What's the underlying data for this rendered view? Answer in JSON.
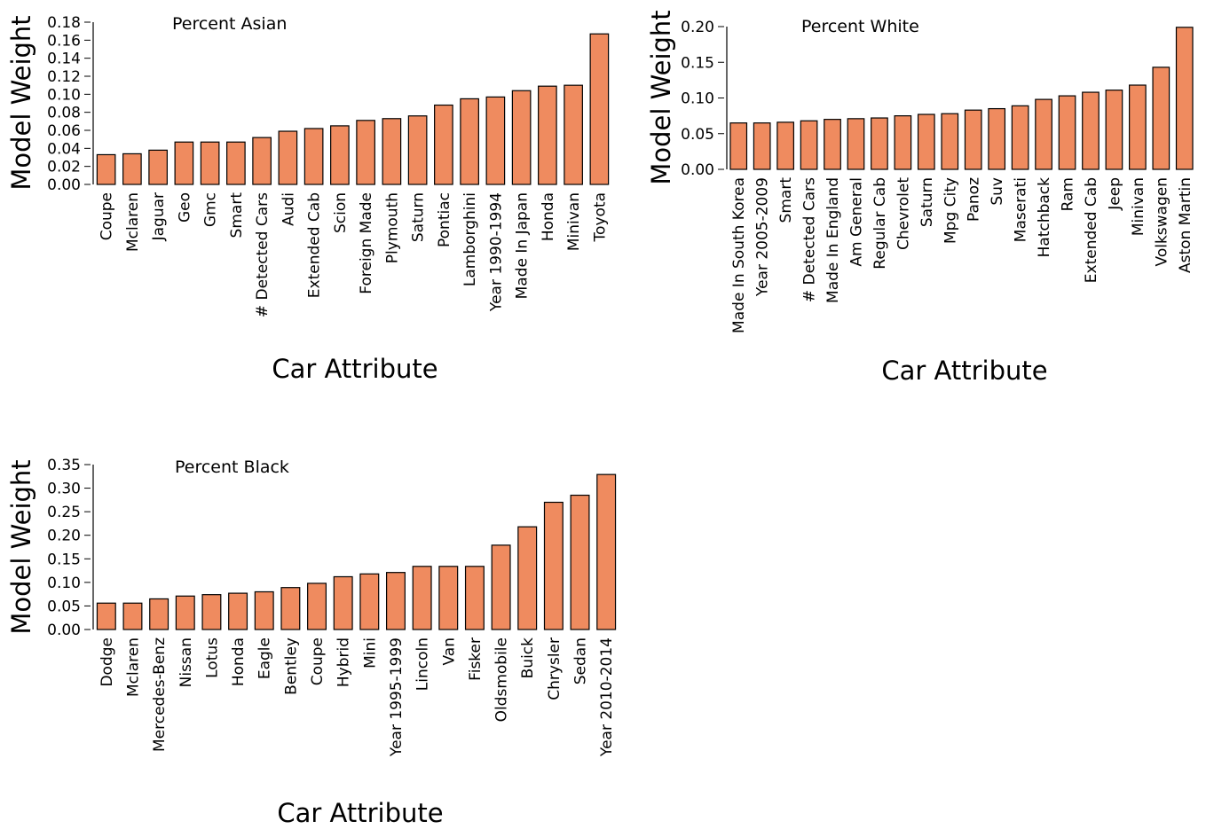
{
  "colors": {
    "bar_fill": "#ef8b5f",
    "bar_edge": "#000000",
    "background": "#ffffff"
  },
  "chart_data": [
    {
      "type": "bar",
      "title": "Percent Asian",
      "xlabel": "Car Attribute",
      "ylabel": "Model Weight",
      "ylim": [
        0,
        0.18
      ],
      "yticks": [
        "0.00",
        "0.02",
        "0.04",
        "0.06",
        "0.08",
        "0.10",
        "0.12",
        "0.14",
        "0.16",
        "0.18"
      ],
      "grid": false,
      "categories": [
        "Coupe",
        "Mclaren",
        "Jaguar",
        "Geo",
        "Gmc",
        "Smart",
        "# Detected Cars",
        "Audi",
        "Extended Cab",
        "Scion",
        "Foreign Made",
        "Plymouth",
        "Saturn",
        "Pontiac",
        "Lamborghini",
        "Year 1990-1994",
        "Made In Japan",
        "Honda",
        "Minivan",
        "Toyota"
      ],
      "values": [
        0.033,
        0.034,
        0.038,
        0.047,
        0.047,
        0.047,
        0.052,
        0.059,
        0.062,
        0.065,
        0.071,
        0.073,
        0.076,
        0.088,
        0.095,
        0.097,
        0.104,
        0.109,
        0.11,
        0.167
      ]
    },
    {
      "type": "bar",
      "title": "Percent White",
      "xlabel": "Car Attribute",
      "ylabel": "Model Weight",
      "ylim": [
        0,
        0.2
      ],
      "yticks": [
        "0.00",
        "0.05",
        "0.10",
        "0.15",
        "0.20"
      ],
      "grid": false,
      "categories": [
        "Made In South Korea",
        "Year 2005-2009",
        "Smart",
        "# Detected Cars",
        "Made In England",
        "Am General",
        "Regular Cab",
        "Chevrolet",
        "Saturn",
        "Mpg City",
        "Panoz",
        "Suv",
        "Maserati",
        "Hatchback",
        "Ram",
        "Extended Cab",
        "Jeep",
        "Minivan",
        "Volkswagen",
        "Aston Martin"
      ],
      "values": [
        0.065,
        0.065,
        0.066,
        0.068,
        0.07,
        0.071,
        0.072,
        0.075,
        0.077,
        0.078,
        0.083,
        0.085,
        0.089,
        0.098,
        0.103,
        0.108,
        0.111,
        0.118,
        0.143,
        0.199
      ]
    },
    {
      "type": "bar",
      "title": "Percent Black",
      "xlabel": "Car Attribute",
      "ylabel": "Model Weight",
      "ylim": [
        0,
        0.35
      ],
      "yticks": [
        "0.00",
        "0.05",
        "0.10",
        "0.15",
        "0.20",
        "0.25",
        "0.30",
        "0.35"
      ],
      "grid": false,
      "categories": [
        "Dodge",
        "Mclaren",
        "Mercedes-Benz",
        "Nissan",
        "Lotus",
        "Honda",
        "Eagle",
        "Bentley",
        "Coupe",
        "Hybrid",
        "Mini",
        "Year 1995-1999",
        "Lincoln",
        "Van",
        "Fisker",
        "Oldsmobile",
        "Buick",
        "Chrysler",
        "Sedan",
        "Year 2010-2014"
      ],
      "values": [
        0.056,
        0.056,
        0.065,
        0.071,
        0.074,
        0.077,
        0.08,
        0.089,
        0.098,
        0.112,
        0.118,
        0.121,
        0.134,
        0.134,
        0.134,
        0.179,
        0.218,
        0.27,
        0.285,
        0.329
      ]
    }
  ]
}
